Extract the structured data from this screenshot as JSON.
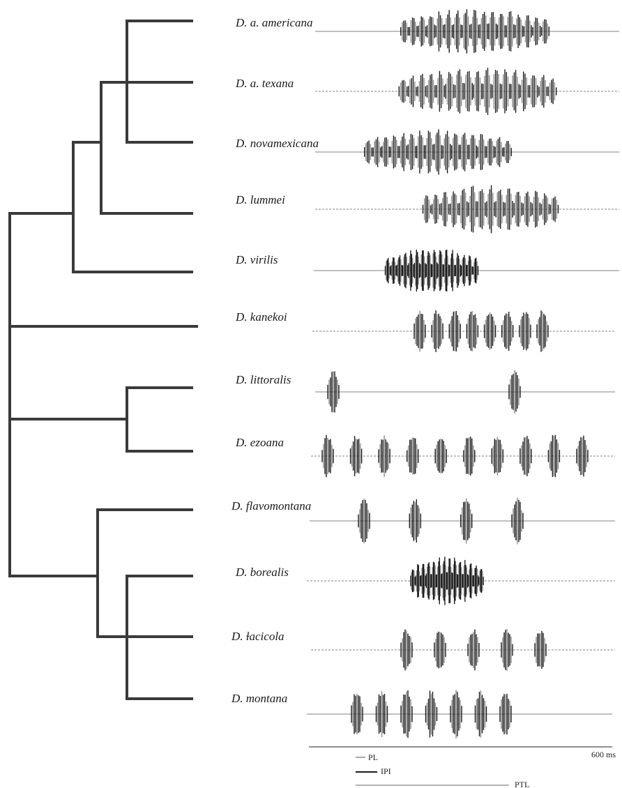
{
  "colors": {
    "tree": "#3a3a3a",
    "burst": "#1c1c1c",
    "burst_light": "#8a8a8a",
    "baseline": "#9a9a9a",
    "scale": "#6a6a6a"
  },
  "species": [
    {
      "label": "D. a. americana",
      "bursts": 17,
      "pattern": "dense"
    },
    {
      "label": "D. a. texana",
      "bursts": 17,
      "pattern": "dense"
    },
    {
      "label": "D. novamexicana",
      "bursts": 17,
      "pattern": "dense"
    },
    {
      "label": "D. lummei",
      "bursts": 15,
      "pattern": "dense"
    },
    {
      "label": "D. virilis",
      "bursts": 16,
      "pattern": "dense"
    },
    {
      "label": "D. kanekoi",
      "bursts": 8,
      "pattern": "pulses"
    },
    {
      "label": "D. littoralis",
      "bursts": 2,
      "pattern": "pulses"
    },
    {
      "label": "D. ezoana",
      "bursts": 10,
      "pattern": "pulses"
    },
    {
      "label": "D. flavomontana",
      "bursts": 4,
      "pattern": "pulses"
    },
    {
      "label": "D. borealis",
      "bursts": 14,
      "pattern": "dense"
    },
    {
      "label": "D. ɫacicola",
      "bursts": 5,
      "pattern": "pulses"
    },
    {
      "label": "D. montana",
      "bursts": 7,
      "pattern": "pulses"
    }
  ],
  "scale": {
    "total_label": "600 ms",
    "pl_label": "PL",
    "ipi_label": "IPI",
    "ptl_label": "PTL"
  }
}
